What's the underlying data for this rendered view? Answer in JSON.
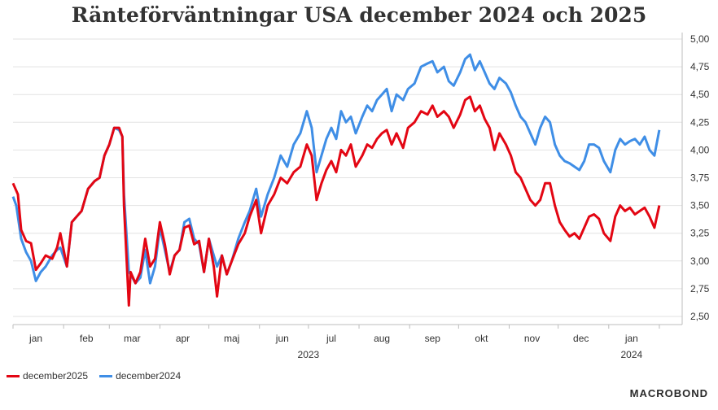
{
  "chart_data": {
    "type": "line",
    "title": "Ränteförväntningar USA december 2024 och 2025",
    "xlabel": "",
    "ylabel": "",
    "x_range": [
      "2023-01-01",
      "2024-02-15"
    ],
    "ylim": [
      2.4,
      5.05
    ],
    "y_ticks": [
      "5,00",
      "4,75",
      "4,50",
      "4,25",
      "4,00",
      "3,75",
      "3,50",
      "3,25",
      "3,00",
      "2,75",
      "2,50"
    ],
    "y_tick_values": [
      5.0,
      4.75,
      4.5,
      4.25,
      4.0,
      3.75,
      3.5,
      3.25,
      3.0,
      2.75,
      2.5
    ],
    "month_labels": [
      {
        "label": "jan",
        "date": "2023-01-15"
      },
      {
        "label": "feb",
        "date": "2023-02-15"
      },
      {
        "label": "mar",
        "date": "2023-03-15"
      },
      {
        "label": "apr",
        "date": "2023-04-15"
      },
      {
        "label": "maj",
        "date": "2023-05-15"
      },
      {
        "label": "jun",
        "date": "2023-06-15"
      },
      {
        "label": "jul",
        "date": "2023-07-15"
      },
      {
        "label": "aug",
        "date": "2023-08-15"
      },
      {
        "label": "sep",
        "date": "2023-09-15"
      },
      {
        "label": "okt",
        "date": "2023-10-15"
      },
      {
        "label": "nov",
        "date": "2023-11-15"
      },
      {
        "label": "dec",
        "date": "2023-12-15"
      },
      {
        "label": "jan",
        "date": "2024-01-15"
      }
    ],
    "year_labels": [
      {
        "label": "2023",
        "date": "2023-07-01"
      },
      {
        "label": "2024",
        "date": "2024-01-15"
      }
    ],
    "grid": true,
    "legend_position": "bottom-left",
    "series": [
      {
        "name": "december2025",
        "color": "#e30613",
        "points": [
          [
            "2023-01-01",
            3.7
          ],
          [
            "2023-01-04",
            3.6
          ],
          [
            "2023-01-06",
            3.28
          ],
          [
            "2023-01-09",
            3.18
          ],
          [
            "2023-01-12",
            3.16
          ],
          [
            "2023-01-15",
            2.92
          ],
          [
            "2023-01-18",
            2.98
          ],
          [
            "2023-01-21",
            3.05
          ],
          [
            "2023-01-25",
            3.02
          ],
          [
            "2023-01-28",
            3.12
          ],
          [
            "2023-01-30",
            3.25
          ],
          [
            "2023-02-03",
            2.95
          ],
          [
            "2023-02-06",
            3.35
          ],
          [
            "2023-02-09",
            3.4
          ],
          [
            "2023-02-12",
            3.45
          ],
          [
            "2023-02-16",
            3.65
          ],
          [
            "2023-02-20",
            3.72
          ],
          [
            "2023-02-23",
            3.75
          ],
          [
            "2023-02-26",
            3.95
          ],
          [
            "2023-03-01",
            4.05
          ],
          [
            "2023-03-04",
            4.2
          ],
          [
            "2023-03-07",
            4.2
          ],
          [
            "2023-03-09",
            4.12
          ],
          [
            "2023-03-10",
            3.5
          ],
          [
            "2023-03-13",
            2.6
          ],
          [
            "2023-03-14",
            2.9
          ],
          [
            "2023-03-17",
            2.8
          ],
          [
            "2023-03-20",
            2.9
          ],
          [
            "2023-03-23",
            3.2
          ],
          [
            "2023-03-26",
            2.95
          ],
          [
            "2023-03-29",
            3.02
          ],
          [
            "2023-04-01",
            3.35
          ],
          [
            "2023-04-04",
            3.15
          ],
          [
            "2023-04-07",
            2.88
          ],
          [
            "2023-04-10",
            3.05
          ],
          [
            "2023-04-13",
            3.1
          ],
          [
            "2023-04-16",
            3.3
          ],
          [
            "2023-04-19",
            3.32
          ],
          [
            "2023-04-22",
            3.15
          ],
          [
            "2023-04-25",
            3.18
          ],
          [
            "2023-04-28",
            2.9
          ],
          [
            "2023-05-01",
            3.2
          ],
          [
            "2023-05-04",
            2.95
          ],
          [
            "2023-05-06",
            2.68
          ],
          [
            "2023-05-09",
            3.05
          ],
          [
            "2023-05-12",
            2.88
          ],
          [
            "2023-05-15",
            3.0
          ],
          [
            "2023-05-19",
            3.15
          ],
          [
            "2023-05-23",
            3.25
          ],
          [
            "2023-05-26",
            3.4
          ],
          [
            "2023-05-30",
            3.55
          ],
          [
            "2023-06-02",
            3.25
          ],
          [
            "2023-06-06",
            3.5
          ],
          [
            "2023-06-10",
            3.6
          ],
          [
            "2023-06-14",
            3.75
          ],
          [
            "2023-06-18",
            3.7
          ],
          [
            "2023-06-22",
            3.8
          ],
          [
            "2023-06-26",
            3.85
          ],
          [
            "2023-06-30",
            4.05
          ],
          [
            "2023-07-03",
            3.95
          ],
          [
            "2023-07-06",
            3.55
          ],
          [
            "2023-07-09",
            3.7
          ],
          [
            "2023-07-12",
            3.82
          ],
          [
            "2023-07-15",
            3.9
          ],
          [
            "2023-07-18",
            3.8
          ],
          [
            "2023-07-21",
            4.0
          ],
          [
            "2023-07-24",
            3.95
          ],
          [
            "2023-07-27",
            4.05
          ],
          [
            "2023-07-30",
            3.85
          ],
          [
            "2023-08-03",
            3.95
          ],
          [
            "2023-08-06",
            4.05
          ],
          [
            "2023-08-09",
            4.02
          ],
          [
            "2023-08-12",
            4.1
          ],
          [
            "2023-08-15",
            4.15
          ],
          [
            "2023-08-18",
            4.18
          ],
          [
            "2023-08-21",
            4.05
          ],
          [
            "2023-08-24",
            4.15
          ],
          [
            "2023-08-28",
            4.02
          ],
          [
            "2023-08-31",
            4.2
          ],
          [
            "2023-09-04",
            4.25
          ],
          [
            "2023-09-08",
            4.35
          ],
          [
            "2023-09-12",
            4.32
          ],
          [
            "2023-09-15",
            4.4
          ],
          [
            "2023-09-18",
            4.3
          ],
          [
            "2023-09-22",
            4.35
          ],
          [
            "2023-09-25",
            4.3
          ],
          [
            "2023-09-28",
            4.2
          ],
          [
            "2023-10-02",
            4.32
          ],
          [
            "2023-10-05",
            4.45
          ],
          [
            "2023-10-08",
            4.48
          ],
          [
            "2023-10-11",
            4.35
          ],
          [
            "2023-10-14",
            4.4
          ],
          [
            "2023-10-17",
            4.28
          ],
          [
            "2023-10-20",
            4.2
          ],
          [
            "2023-10-23",
            4.0
          ],
          [
            "2023-10-26",
            4.15
          ],
          [
            "2023-10-30",
            4.05
          ],
          [
            "2023-11-02",
            3.95
          ],
          [
            "2023-11-05",
            3.8
          ],
          [
            "2023-11-08",
            3.75
          ],
          [
            "2023-11-11",
            3.65
          ],
          [
            "2023-11-14",
            3.55
          ],
          [
            "2023-11-17",
            3.5
          ],
          [
            "2023-11-20",
            3.55
          ],
          [
            "2023-11-23",
            3.7
          ],
          [
            "2023-11-26",
            3.7
          ],
          [
            "2023-11-29",
            3.5
          ],
          [
            "2023-12-02",
            3.35
          ],
          [
            "2023-12-05",
            3.28
          ],
          [
            "2023-12-08",
            3.22
          ],
          [
            "2023-12-11",
            3.25
          ],
          [
            "2023-12-14",
            3.2
          ],
          [
            "2023-12-17",
            3.3
          ],
          [
            "2023-12-20",
            3.4
          ],
          [
            "2023-12-23",
            3.42
          ],
          [
            "2023-12-26",
            3.38
          ],
          [
            "2023-12-29",
            3.25
          ],
          [
            "2024-01-02",
            3.18
          ],
          [
            "2024-01-05",
            3.4
          ],
          [
            "2024-01-08",
            3.5
          ],
          [
            "2024-01-11",
            3.45
          ],
          [
            "2024-01-14",
            3.48
          ],
          [
            "2024-01-17",
            3.42
          ],
          [
            "2024-01-20",
            3.45
          ],
          [
            "2024-01-23",
            3.48
          ],
          [
            "2024-01-26",
            3.4
          ],
          [
            "2024-01-29",
            3.3
          ],
          [
            "2024-02-01",
            3.5
          ]
        ]
      },
      {
        "name": "december2024",
        "color": "#3f8ee6",
        "points": [
          [
            "2023-01-01",
            3.58
          ],
          [
            "2023-01-03",
            3.5
          ],
          [
            "2023-01-06",
            3.2
          ],
          [
            "2023-01-09",
            3.08
          ],
          [
            "2023-01-12",
            3.0
          ],
          [
            "2023-01-15",
            2.82
          ],
          [
            "2023-01-18",
            2.9
          ],
          [
            "2023-01-21",
            2.95
          ],
          [
            "2023-01-25",
            3.05
          ],
          [
            "2023-01-28",
            3.1
          ],
          [
            "2023-01-30",
            3.12
          ],
          [
            "2023-02-03",
            2.95
          ],
          [
            "2023-02-06",
            3.35
          ],
          [
            "2023-02-09",
            3.4
          ],
          [
            "2023-02-12",
            3.45
          ],
          [
            "2023-02-16",
            3.65
          ],
          [
            "2023-02-20",
            3.72
          ],
          [
            "2023-02-23",
            3.75
          ],
          [
            "2023-02-26",
            3.95
          ],
          [
            "2023-03-01",
            4.05
          ],
          [
            "2023-03-04",
            4.2
          ],
          [
            "2023-03-07",
            4.18
          ],
          [
            "2023-03-09",
            4.12
          ],
          [
            "2023-03-10",
            3.6
          ],
          [
            "2023-03-13",
            2.9
          ],
          [
            "2023-03-14",
            2.88
          ],
          [
            "2023-03-17",
            2.8
          ],
          [
            "2023-03-20",
            2.85
          ],
          [
            "2023-03-23",
            3.1
          ],
          [
            "2023-03-26",
            2.8
          ],
          [
            "2023-03-29",
            2.95
          ],
          [
            "2023-04-01",
            3.3
          ],
          [
            "2023-04-04",
            3.1
          ],
          [
            "2023-04-07",
            2.9
          ],
          [
            "2023-04-10",
            3.05
          ],
          [
            "2023-04-13",
            3.1
          ],
          [
            "2023-04-16",
            3.35
          ],
          [
            "2023-04-19",
            3.38
          ],
          [
            "2023-04-22",
            3.2
          ],
          [
            "2023-04-25",
            3.15
          ],
          [
            "2023-04-28",
            2.9
          ],
          [
            "2023-05-01",
            3.2
          ],
          [
            "2023-05-04",
            3.05
          ],
          [
            "2023-05-06",
            2.95
          ],
          [
            "2023-05-09",
            3.05
          ],
          [
            "2023-05-12",
            2.88
          ],
          [
            "2023-05-15",
            3.0
          ],
          [
            "2023-05-19",
            3.2
          ],
          [
            "2023-05-23",
            3.35
          ],
          [
            "2023-05-26",
            3.45
          ],
          [
            "2023-05-30",
            3.65
          ],
          [
            "2023-06-02",
            3.4
          ],
          [
            "2023-06-06",
            3.6
          ],
          [
            "2023-06-10",
            3.75
          ],
          [
            "2023-06-14",
            3.95
          ],
          [
            "2023-06-18",
            3.85
          ],
          [
            "2023-06-22",
            4.05
          ],
          [
            "2023-06-26",
            4.15
          ],
          [
            "2023-06-30",
            4.35
          ],
          [
            "2023-07-03",
            4.2
          ],
          [
            "2023-07-06",
            3.8
          ],
          [
            "2023-07-09",
            3.95
          ],
          [
            "2023-07-12",
            4.1
          ],
          [
            "2023-07-15",
            4.2
          ],
          [
            "2023-07-18",
            4.1
          ],
          [
            "2023-07-21",
            4.35
          ],
          [
            "2023-07-24",
            4.25
          ],
          [
            "2023-07-27",
            4.3
          ],
          [
            "2023-07-30",
            4.15
          ],
          [
            "2023-08-03",
            4.3
          ],
          [
            "2023-08-06",
            4.4
          ],
          [
            "2023-08-09",
            4.35
          ],
          [
            "2023-08-12",
            4.45
          ],
          [
            "2023-08-15",
            4.5
          ],
          [
            "2023-08-18",
            4.55
          ],
          [
            "2023-08-21",
            4.35
          ],
          [
            "2023-08-24",
            4.5
          ],
          [
            "2023-08-28",
            4.45
          ],
          [
            "2023-08-31",
            4.55
          ],
          [
            "2023-09-04",
            4.6
          ],
          [
            "2023-09-08",
            4.75
          ],
          [
            "2023-09-12",
            4.78
          ],
          [
            "2023-09-15",
            4.8
          ],
          [
            "2023-09-18",
            4.7
          ],
          [
            "2023-09-22",
            4.75
          ],
          [
            "2023-09-25",
            4.62
          ],
          [
            "2023-09-28",
            4.58
          ],
          [
            "2023-10-02",
            4.7
          ],
          [
            "2023-10-05",
            4.82
          ],
          [
            "2023-10-08",
            4.86
          ],
          [
            "2023-10-11",
            4.72
          ],
          [
            "2023-10-14",
            4.8
          ],
          [
            "2023-10-17",
            4.7
          ],
          [
            "2023-10-20",
            4.6
          ],
          [
            "2023-10-23",
            4.55
          ],
          [
            "2023-10-26",
            4.65
          ],
          [
            "2023-10-30",
            4.6
          ],
          [
            "2023-11-02",
            4.52
          ],
          [
            "2023-11-05",
            4.4
          ],
          [
            "2023-11-08",
            4.3
          ],
          [
            "2023-11-11",
            4.25
          ],
          [
            "2023-11-14",
            4.15
          ],
          [
            "2023-11-17",
            4.05
          ],
          [
            "2023-11-20",
            4.2
          ],
          [
            "2023-11-23",
            4.3
          ],
          [
            "2023-11-26",
            4.25
          ],
          [
            "2023-11-29",
            4.05
          ],
          [
            "2023-12-02",
            3.95
          ],
          [
            "2023-12-05",
            3.9
          ],
          [
            "2023-12-08",
            3.88
          ],
          [
            "2023-12-11",
            3.85
          ],
          [
            "2023-12-14",
            3.82
          ],
          [
            "2023-12-17",
            3.9
          ],
          [
            "2023-12-20",
            4.05
          ],
          [
            "2023-12-23",
            4.05
          ],
          [
            "2023-12-26",
            4.02
          ],
          [
            "2023-12-29",
            3.9
          ],
          [
            "2024-01-02",
            3.8
          ],
          [
            "2024-01-05",
            4.0
          ],
          [
            "2024-01-08",
            4.1
          ],
          [
            "2024-01-11",
            4.05
          ],
          [
            "2024-01-14",
            4.08
          ],
          [
            "2024-01-17",
            4.1
          ],
          [
            "2024-01-20",
            4.05
          ],
          [
            "2024-01-23",
            4.12
          ],
          [
            "2024-01-26",
            4.0
          ],
          [
            "2024-01-29",
            3.95
          ],
          [
            "2024-02-01",
            4.18
          ]
        ]
      }
    ]
  },
  "legend": [
    {
      "label": "december2025",
      "color": "#e30613"
    },
    {
      "label": "december2024",
      "color": "#3f8ee6"
    }
  ],
  "logo": "MACROBOND"
}
